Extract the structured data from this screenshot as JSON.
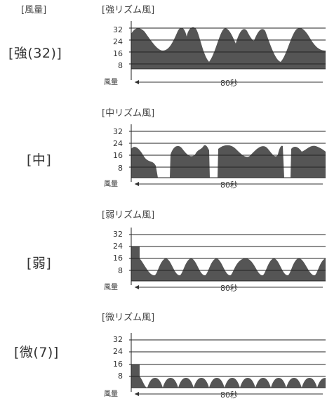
{
  "column_header": "[風量]",
  "charts": [
    {
      "level_label": "[強(32)]",
      "title": "[強リズム風]",
      "y_ticks": [
        "32",
        "24",
        "16",
        "8"
      ],
      "y_axis_label": "風量",
      "x_axis_label": "80秒",
      "fill_color": "#555555"
    },
    {
      "level_label": "[中]",
      "title": "[中リズム風]",
      "y_ticks": [
        "32",
        "24",
        "16",
        "8"
      ],
      "y_axis_label": "風量",
      "x_axis_label": "80秒",
      "fill_color": "#555555"
    },
    {
      "level_label": "[弱]",
      "title": "[弱リズム風]",
      "y_ticks": [
        "32",
        "24",
        "16",
        "8"
      ],
      "y_axis_label": "風量",
      "x_axis_label": "80秒",
      "fill_color": "#555555"
    },
    {
      "level_label": "[微(7)]",
      "title": "[微リズム風]",
      "y_ticks": [
        "32",
        "24",
        "16",
        "8"
      ],
      "y_axis_label": "風量",
      "x_axis_label": "80秒",
      "fill_color": "#555555"
    }
  ]
}
